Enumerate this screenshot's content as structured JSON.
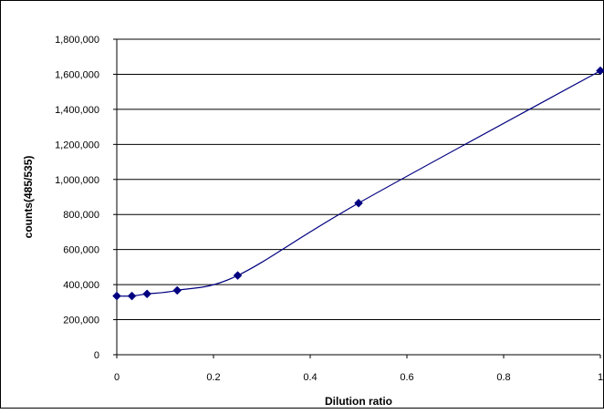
{
  "chart_data": {
    "type": "scatter",
    "title": "",
    "xlabel": "Dilution ratio",
    "ylabel": "counts(485/535)",
    "xlim": [
      0,
      1
    ],
    "ylim": [
      0,
      1800000
    ],
    "x_ticks": [
      "0",
      "0.2",
      "0.4",
      "0.6",
      "0.8",
      "1"
    ],
    "y_ticks": [
      "0",
      "200,000",
      "400,000",
      "600,000",
      "800,000",
      "1,000,000",
      "1,200,000",
      "1,400,000",
      "1,600,000",
      "1,800,000"
    ],
    "grid": "horizontal",
    "legend": "none",
    "line": "smoothed",
    "color": "#000080",
    "series": [
      {
        "x": [
          0,
          0.03125,
          0.0625,
          0.125,
          0.25,
          0.5,
          1
        ],
        "y": [
          335000,
          335000,
          347000,
          367000,
          452000,
          865000,
          1620000
        ]
      }
    ]
  }
}
